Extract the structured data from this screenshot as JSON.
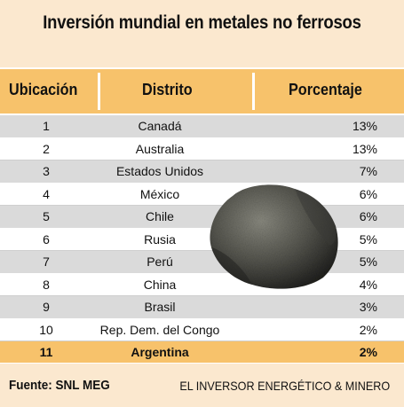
{
  "title": "Inversión mundial en metales no ferrosos",
  "header": {
    "col1": "Ubicación",
    "col2": "Distrito",
    "col3": "Porcentaje"
  },
  "rows": [
    {
      "rank": "1",
      "district": "Canadá",
      "percent": "13%"
    },
    {
      "rank": "2",
      "district": "Australia",
      "percent": "13%"
    },
    {
      "rank": "3",
      "district": "Estados Unidos",
      "percent": "7%"
    },
    {
      "rank": "4",
      "district": "México",
      "percent": "6%"
    },
    {
      "rank": "5",
      "district": "Chile",
      "percent": "6%"
    },
    {
      "rank": "6",
      "district": "Rusia",
      "percent": "5%"
    },
    {
      "rank": "7",
      "district": "Perú",
      "percent": "5%"
    },
    {
      "rank": "8",
      "district": "China",
      "percent": "4%"
    },
    {
      "rank": "9",
      "district": "Brasil",
      "percent": "3%"
    },
    {
      "rank": "10",
      "district": "Rep. Dem. del Congo",
      "percent": "2%"
    },
    {
      "rank": "11",
      "district": "Argentina",
      "percent": "2%"
    }
  ],
  "footer": {
    "source": "Fuente: SNL MEG",
    "publisher": "EL INVERSOR ENERGÉTICO & MINERO"
  },
  "colors": {
    "background": "#fbe8cf",
    "header": "#f7c26b",
    "highlight": "#f7c26b",
    "stripe": "#dadada"
  }
}
